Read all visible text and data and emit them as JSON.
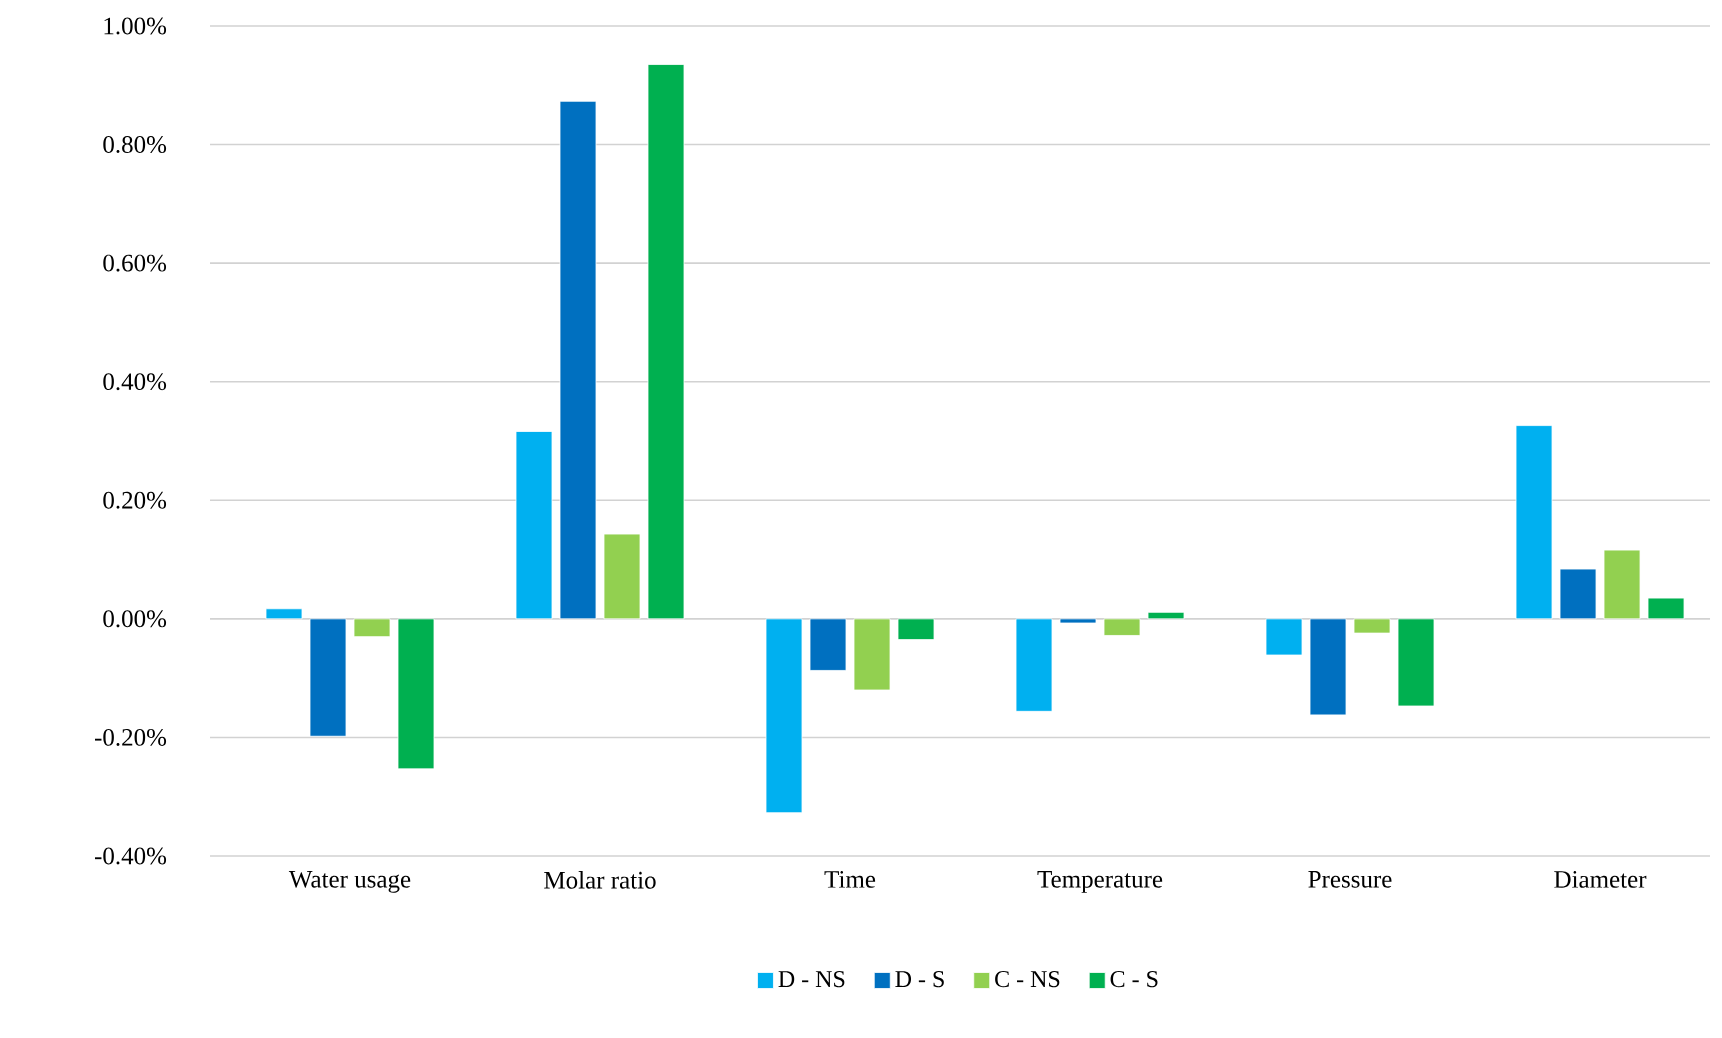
{
  "chart_data": {
    "type": "bar",
    "categories": [
      "Water usage",
      "Molar ratio",
      "Time",
      "Temperature",
      "Pressure",
      "Diameter"
    ],
    "series": [
      {
        "name": "D - NS",
        "color": "#00b0f0",
        "values": [
          0.017,
          0.316,
          -0.327,
          -0.156,
          -0.061,
          0.326
        ]
      },
      {
        "name": "D - S",
        "color": "#0070c0",
        "values": [
          -0.198,
          0.873,
          -0.087,
          -0.007,
          -0.162,
          0.084
        ]
      },
      {
        "name": "C - NS",
        "color": "#92d050",
        "values": [
          -0.03,
          0.143,
          -0.12,
          -0.028,
          -0.024,
          0.116
        ]
      },
      {
        "name": "C - S",
        "color": "#00b050",
        "values": [
          -0.253,
          0.935,
          -0.035,
          0.011,
          -0.147,
          0.035
        ]
      }
    ],
    "ylim": [
      -0.4,
      1.0
    ],
    "yticks": [
      {
        "value": -0.4,
        "label": "-0.40%"
      },
      {
        "value": -0.2,
        "label": "-0.20%"
      },
      {
        "value": 0,
        "label": "0.00%"
      },
      {
        "value": 0.2,
        "label": "0.20%"
      },
      {
        "value": 0.4,
        "label": "0.40%"
      },
      {
        "value": 0.6,
        "label": "0.60%"
      },
      {
        "value": 0.8,
        "label": "0.80%"
      },
      {
        "value": 1.0,
        "label": "1.00%"
      }
    ],
    "grid": "y",
    "legend": "bottom"
  }
}
